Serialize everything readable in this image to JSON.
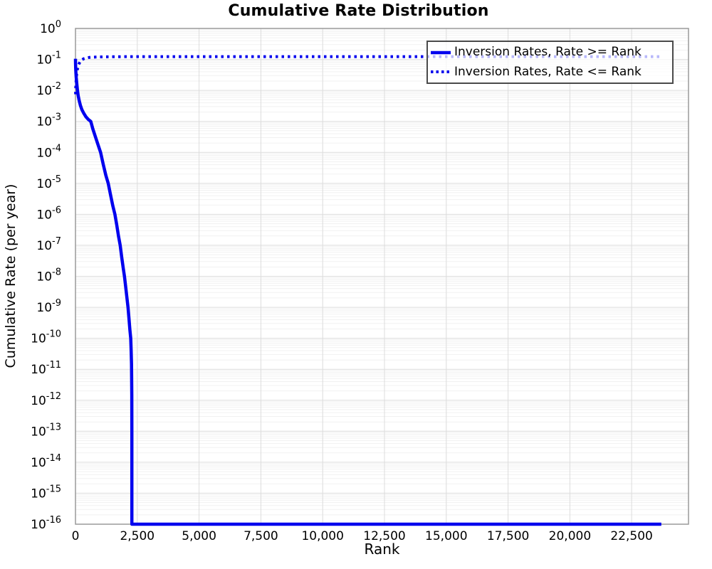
{
  "chart_data": {
    "type": "line",
    "title": "Cumulative Rate Distribution",
    "xlabel": "Rank",
    "ylabel": "Cumulative Rate (per year)",
    "x_axis": {
      "min": 0,
      "max": 24800,
      "ticks": [
        {
          "value": 0,
          "label": "0"
        },
        {
          "value": 2500,
          "label": "2,500"
        },
        {
          "value": 5000,
          "label": "5,000"
        },
        {
          "value": 7500,
          "label": "7,500"
        },
        {
          "value": 10000,
          "label": "10,000"
        },
        {
          "value": 12500,
          "label": "12,500"
        },
        {
          "value": 15000,
          "label": "15,000"
        },
        {
          "value": 17500,
          "label": "17,500"
        },
        {
          "value": 20000,
          "label": "20,000"
        },
        {
          "value": 22500,
          "label": "22,500"
        }
      ]
    },
    "y_axis": {
      "scale": "log10",
      "top_exponent": 0,
      "bottom_exponent": -16,
      "tick_exponents": [
        0,
        -1,
        -2,
        -3,
        -4,
        -5,
        -6,
        -7,
        -8,
        -9,
        -10,
        -11,
        -12,
        -13,
        -14,
        -15,
        -16
      ]
    },
    "grid": {
      "show": true,
      "major_color": "#dcdcdc",
      "minor_color": "#f1f1f1"
    },
    "frame": {
      "spine_color": "#9a9a9a",
      "background": "#ffffff"
    },
    "legend": {
      "position": "top-right",
      "border_color": "#4a4a4a"
    },
    "series": [
      {
        "name": "Inversion Rates, Rate >= Rank",
        "color": "#0000ee",
        "style": "solid",
        "line_width": 4.5,
        "points": [
          [
            0,
            0.105
          ],
          [
            4,
            0.075
          ],
          [
            10,
            0.052
          ],
          [
            18,
            0.038
          ],
          [
            30,
            0.027
          ],
          [
            45,
            0.019
          ],
          [
            60,
            0.0145
          ],
          [
            81,
            0.01
          ],
          [
            110,
            0.0068
          ],
          [
            150,
            0.0047
          ],
          [
            200,
            0.0033
          ],
          [
            260,
            0.0024
          ],
          [
            330,
            0.00185
          ],
          [
            420,
            0.00142
          ],
          [
            520,
            0.00115
          ],
          [
            620,
            0.001
          ],
          [
            700,
            0.00058
          ],
          [
            800,
            0.00033
          ],
          [
            900,
            0.00019
          ],
          [
            1018,
            0.0001
          ],
          [
            1120,
            4.2e-05
          ],
          [
            1230,
            1.8e-05
          ],
          [
            1325,
            1e-05
          ],
          [
            1420,
            4.2e-06
          ],
          [
            1510,
            1.9e-06
          ],
          [
            1597,
            1e-06
          ],
          [
            1670,
            4.5e-07
          ],
          [
            1740,
            2e-07
          ],
          [
            1808,
            1e-07
          ],
          [
            1870,
            4.2e-08
          ],
          [
            1930,
            1.9e-08
          ],
          [
            1982,
            1e-08
          ],
          [
            2035,
            4.2e-09
          ],
          [
            2085,
            1.9e-09
          ],
          [
            2127,
            1e-09
          ],
          [
            2165,
            4.2e-10
          ],
          [
            2200,
            1.9e-10
          ],
          [
            2234,
            1e-10
          ],
          [
            2252,
            4e-11
          ],
          [
            2266,
            1.5e-11
          ],
          [
            2274,
            5e-12
          ],
          [
            2278,
            1.5e-12
          ],
          [
            2280,
            1e-13
          ],
          [
            2281,
            1e-16
          ],
          [
            23700,
            1e-16
          ]
        ]
      },
      {
        "name": "Inversion Rates, Rate <= Rank",
        "color": "#0000ee",
        "style": "dotted",
        "line_width": 4,
        "points": [
          [
            2,
            0.0075
          ],
          [
            6,
            0.0095
          ],
          [
            12,
            0.013
          ],
          [
            20,
            0.018
          ],
          [
            35,
            0.026
          ],
          [
            55,
            0.037
          ],
          [
            80,
            0.049
          ],
          [
            110,
            0.061
          ],
          [
            150,
            0.074
          ],
          [
            200,
            0.087
          ],
          [
            260,
            0.097
          ],
          [
            330,
            0.105
          ],
          [
            420,
            0.111
          ],
          [
            550,
            0.1155
          ],
          [
            700,
            0.118
          ],
          [
            900,
            0.12
          ],
          [
            1200,
            0.1215
          ],
          [
            1800,
            0.1225
          ],
          [
            2500,
            0.123
          ],
          [
            5000,
            0.1235
          ],
          [
            23700,
            0.1235
          ]
        ]
      }
    ]
  }
}
